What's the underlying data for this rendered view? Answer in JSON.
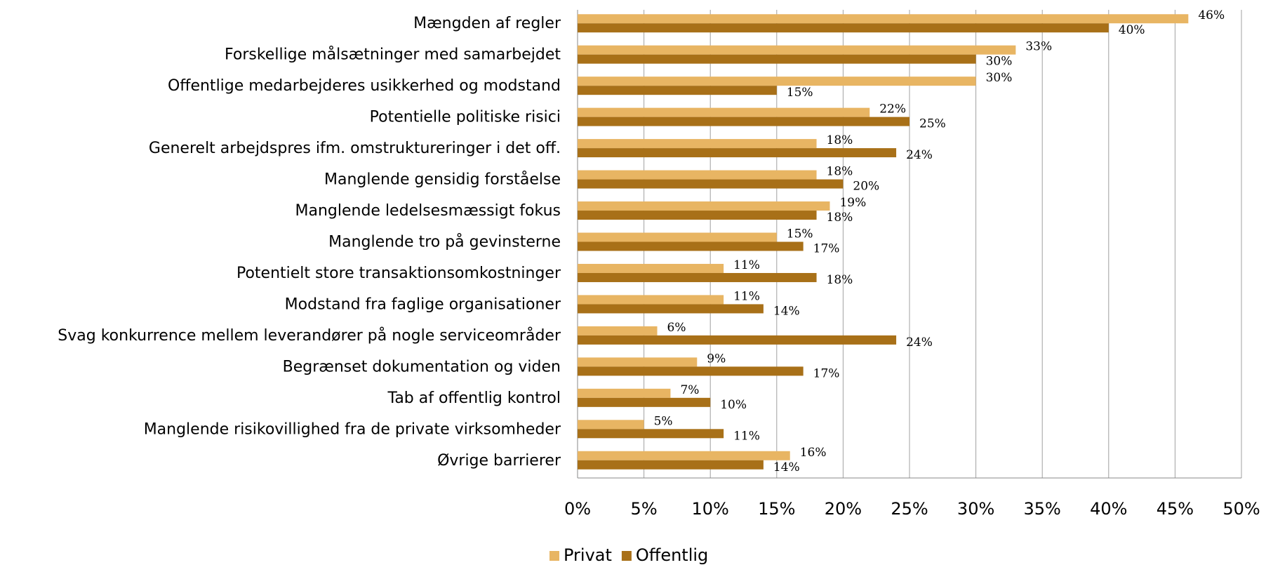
{
  "chart_data": {
    "type": "bar",
    "orientation": "horizontal",
    "categories": [
      "Mængden af regler",
      "Forskellige målsætninger med samarbejdet",
      "Offentlige medarbejderes usikkerhed og modstand",
      "Potentielle politiske risici",
      "Generelt arbejdspres ifm. omstruktureringer i det off.",
      "Manglende gensidig forståelse",
      "Manglende ledelsesmæssigt fokus",
      "Manglende tro på gevinsterne",
      "Potentielt store transaktionsomkostninger",
      "Modstand fra faglige organisationer",
      "Svag konkurrence mellem leverandører på nogle serviceområder",
      "Begrænset dokumentation og viden",
      "Tab af offentlig kontrol",
      "Manglende risikovillighed fra de private virksomheder",
      "Øvrige barrierer"
    ],
    "series": [
      {
        "name": "Privat",
        "color": "#e8b563",
        "values": [
          46,
          33,
          30,
          22,
          18,
          18,
          19,
          15,
          11,
          11,
          6,
          9,
          7,
          5,
          16
        ],
        "value_labels": [
          "46%",
          "33%",
          "30%",
          "22%",
          "18%",
          "18%",
          "19%",
          "15%",
          "11%",
          "11%",
          "6%",
          "9%",
          "7%",
          "5%",
          "16%"
        ]
      },
      {
        "name": "Offentlig",
        "color": "#a87018",
        "values": [
          40,
          30,
          15,
          25,
          24,
          20,
          18,
          17,
          18,
          14,
          24,
          17,
          10,
          11,
          14
        ],
        "value_labels": [
          "40%",
          "30%",
          "15%",
          "25%",
          "24%",
          "20%",
          "18%",
          "17%",
          "18%",
          "14%",
          "24%",
          "17%",
          "10%",
          "11%",
          "14%"
        ]
      }
    ],
    "xlim": [
      0,
      50
    ],
    "xticks": [
      {
        "value": 0,
        "label": "0%"
      },
      {
        "value": 5,
        "label": "5%"
      },
      {
        "value": 10,
        "label": "10%"
      },
      {
        "value": 15,
        "label": "15%"
      },
      {
        "value": 20,
        "label": "20%"
      },
      {
        "value": 25,
        "label": "25%"
      },
      {
        "value": 30,
        "label": "30%"
      },
      {
        "value": 35,
        "label": "35%"
      },
      {
        "value": 40,
        "label": "40%"
      },
      {
        "value": 45,
        "label": "45%"
      },
      {
        "value": 50,
        "label": "50%"
      }
    ],
    "grid": true,
    "legend": "bottom"
  }
}
